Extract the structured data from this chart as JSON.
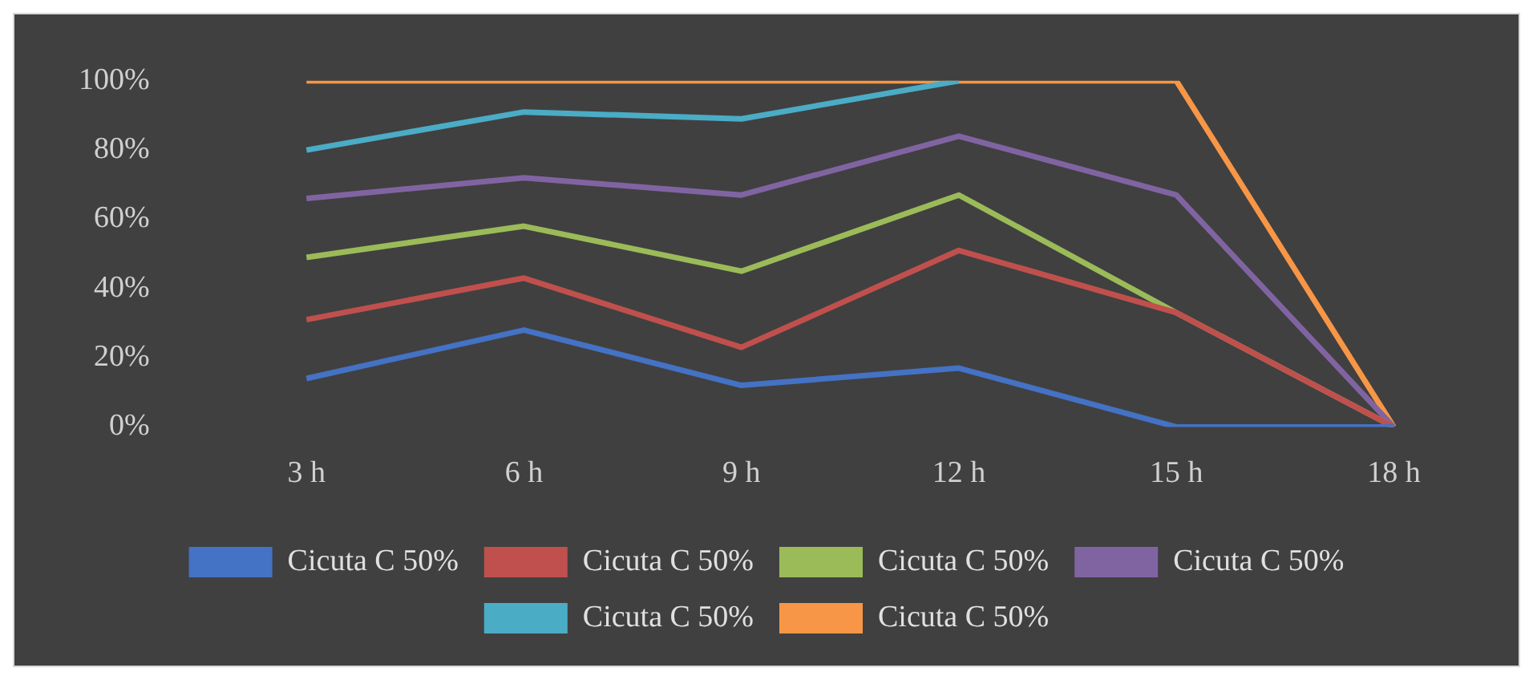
{
  "chart_data": {
    "type": "line",
    "categories": [
      "3 h",
      "6 h",
      "9 h",
      "12 h",
      "15 h",
      "18 h"
    ],
    "series": [
      {
        "name": "Cicuta C 50%",
        "color": "#4472c4",
        "values": [
          14,
          28,
          12,
          17,
          0,
          0
        ]
      },
      {
        "name": "Cicuta C 50%",
        "color": "#c0504d",
        "values": [
          31,
          43,
          23,
          51,
          33,
          0
        ]
      },
      {
        "name": "Cicuta C 50%",
        "color": "#9bbb59",
        "values": [
          49,
          58,
          45,
          67,
          33,
          0
        ]
      },
      {
        "name": "Cicuta C 50%",
        "color": "#8064a2",
        "values": [
          66,
          72,
          67,
          84,
          67,
          0
        ]
      },
      {
        "name": "Cicuta C 50%",
        "color": "#4bacc6",
        "values": [
          80,
          91,
          89,
          100,
          null,
          null
        ]
      },
      {
        "name": "Cicuta C 50%",
        "color": "#f79646",
        "values": [
          100,
          100,
          100,
          100,
          100,
          0
        ]
      }
    ],
    "ylim": [
      0,
      100
    ],
    "yticks": [
      {
        "value": 0,
        "label": "0%"
      },
      {
        "value": 20,
        "label": "20%"
      },
      {
        "value": 40,
        "label": "40%"
      },
      {
        "value": 60,
        "label": "60%"
      },
      {
        "value": 80,
        "label": "80%"
      },
      {
        "value": 100,
        "label": "100%"
      }
    ],
    "grid": false,
    "legend": "bottom",
    "marker": "none",
    "line_style": "solid"
  }
}
